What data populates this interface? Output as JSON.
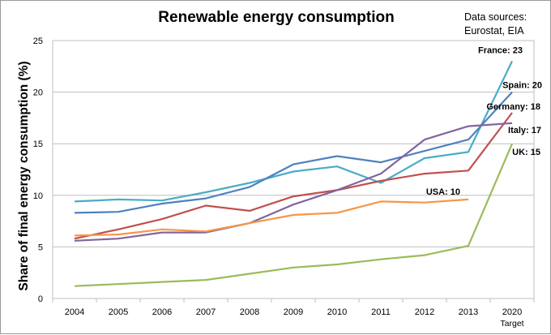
{
  "chart_data": {
    "type": "line",
    "title": "Renewable energy consumption",
    "source_note": [
      "Data sources:",
      "Eurostat, EIA"
    ],
    "ylabel": "Share of final energy consumption (%)",
    "xlabel": "",
    "ylim": [
      0,
      25
    ],
    "yticks": [
      0,
      5,
      10,
      15,
      20,
      25
    ],
    "categories": [
      "2004",
      "2005",
      "2006",
      "2007",
      "2008",
      "2009",
      "2010",
      "2011",
      "2012",
      "2013",
      "2020"
    ],
    "target_label": "Target",
    "grid": true,
    "series": [
      {
        "name": "France",
        "end_label": "France: 23",
        "color": "#4bacc6",
        "values": [
          9.4,
          9.6,
          9.5,
          10.3,
          11.2,
          12.3,
          12.8,
          11.2,
          13.6,
          14.2,
          23
        ]
      },
      {
        "name": "Spain",
        "end_label": "Spain: 20",
        "color": "#4f81bd",
        "values": [
          8.3,
          8.4,
          9.2,
          9.7,
          10.8,
          13.0,
          13.8,
          13.2,
          14.3,
          15.4,
          20
        ]
      },
      {
        "name": "Germany",
        "end_label": "Germany: 18",
        "color": "#c0504d",
        "values": [
          5.8,
          6.7,
          7.7,
          9.0,
          8.5,
          9.9,
          10.5,
          11.4,
          12.1,
          12.4,
          18
        ]
      },
      {
        "name": "Italy",
        "end_label": "Italy: 17",
        "color": "#8064a2",
        "values": [
          5.6,
          5.8,
          6.4,
          6.4,
          7.3,
          9.1,
          10.5,
          12.1,
          15.4,
          16.7,
          17
        ]
      },
      {
        "name": "UK",
        "end_label": "UK: 15",
        "color": "#9bbb59",
        "values": [
          1.2,
          1.4,
          1.6,
          1.8,
          2.4,
          3.0,
          3.3,
          3.8,
          4.2,
          5.1,
          15
        ]
      },
      {
        "name": "USA",
        "end_label": "USA: 10",
        "color": "#f79646",
        "values": [
          6.1,
          6.2,
          6.7,
          6.5,
          7.3,
          8.1,
          8.3,
          9.4,
          9.3,
          9.6,
          null
        ]
      }
    ]
  }
}
